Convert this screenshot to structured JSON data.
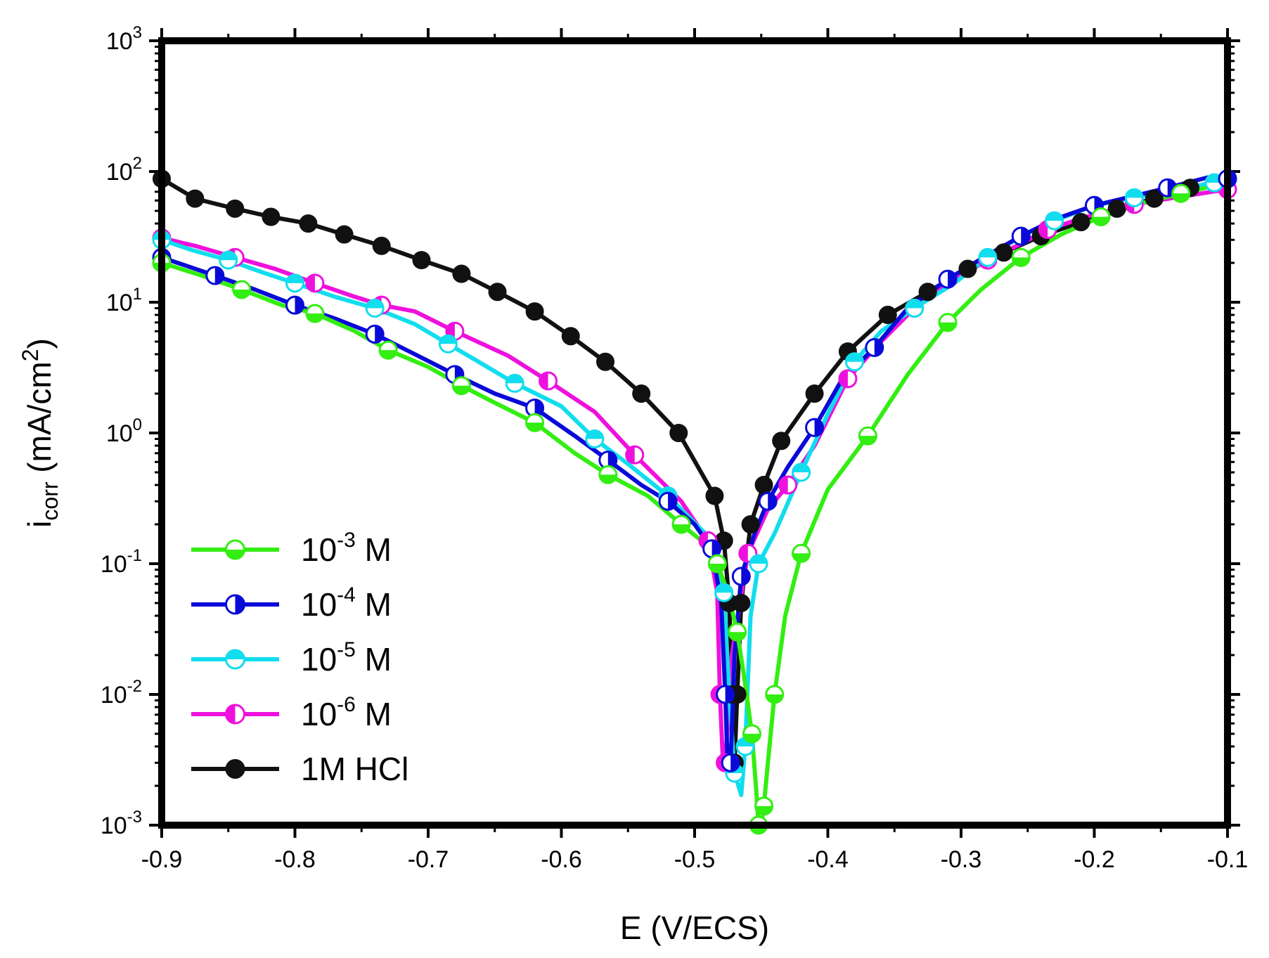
{
  "chart_data": {
    "type": "line",
    "xlabel": "E (V/ECS)",
    "ylabel": {
      "main": "i",
      "sub": "corr",
      "unit": " (mA/cm",
      "sup": "2",
      "close": ")"
    },
    "xlim": [
      -0.9,
      -0.1
    ],
    "ylim": [
      0.001,
      1000
    ],
    "y_scale": "log",
    "grid": false,
    "legend_position": "bottom-left",
    "x_ticks": [
      "-0.9",
      "-0.8",
      "-0.7",
      "-0.6",
      "-0.5",
      "-0.4",
      "-0.3",
      "-0.2",
      "-0.1"
    ],
    "y_ticks": [
      {
        "base": "10",
        "exp": "-3"
      },
      {
        "base": "10",
        "exp": "-2"
      },
      {
        "base": "10",
        "exp": "-1"
      },
      {
        "base": "10",
        "exp": "0"
      },
      {
        "base": "10",
        "exp": "1"
      },
      {
        "base": "10",
        "exp": "2"
      },
      {
        "base": "10",
        "exp": "3"
      }
    ],
    "series": [
      {
        "name": "10-3 M",
        "label": {
          "base": "10",
          "exp": "-3",
          "unit": " M"
        },
        "color": "#33ee11",
        "marker": "half-bottom",
        "x": [
          -0.9,
          -0.87,
          -0.84,
          -0.81,
          -0.785,
          -0.755,
          -0.73,
          -0.7,
          -0.675,
          -0.65,
          -0.62,
          -0.59,
          -0.565,
          -0.535,
          -0.51,
          -0.495,
          -0.483,
          -0.475,
          -0.468,
          -0.462,
          -0.457,
          -0.454,
          -0.452,
          -0.45,
          -0.448,
          -0.445,
          -0.44,
          -0.432,
          -0.42,
          -0.4,
          -0.37,
          -0.34,
          -0.31,
          -0.285,
          -0.255,
          -0.225,
          -0.195,
          -0.165,
          -0.135,
          -0.1
        ],
        "y": [
          20,
          16,
          12.5,
          9.5,
          8.2,
          6,
          4.3,
          3.2,
          2.3,
          1.7,
          1.2,
          0.7,
          0.48,
          0.33,
          0.2,
          0.15,
          0.1,
          0.06,
          0.03,
          0.012,
          0.005,
          0.002,
          0.001,
          0.001,
          0.0014,
          0.003,
          0.01,
          0.04,
          0.12,
          0.37,
          0.95,
          2.8,
          7,
          12.5,
          22,
          33,
          45,
          57,
          68,
          82
        ]
      },
      {
        "name": "10-4 M",
        "label": {
          "base": "10",
          "exp": "-4",
          "unit": " M"
        },
        "color": "#0a0ad8",
        "marker": "half-right",
        "x": [
          -0.9,
          -0.888,
          -0.86,
          -0.83,
          -0.8,
          -0.77,
          -0.74,
          -0.71,
          -0.68,
          -0.65,
          -0.62,
          -0.59,
          -0.565,
          -0.54,
          -0.52,
          -0.5,
          -0.487,
          -0.48,
          -0.477,
          -0.475,
          -0.473,
          -0.47,
          -0.465,
          -0.455,
          -0.445,
          -0.43,
          -0.41,
          -0.39,
          -0.365,
          -0.34,
          -0.31,
          -0.28,
          -0.255,
          -0.23,
          -0.2,
          -0.17,
          -0.145,
          -0.115,
          -0.1
        ],
        "y": [
          22,
          20,
          16,
          12.5,
          9.5,
          7.5,
          5.7,
          4,
          2.8,
          2,
          1.55,
          0.95,
          0.62,
          0.4,
          0.3,
          0.2,
          0.13,
          0.05,
          0.01,
          0.0025,
          0.003,
          0.02,
          0.08,
          0.17,
          0.3,
          0.55,
          1.1,
          2.5,
          4.5,
          9,
          15,
          23,
          32,
          43,
          55,
          65,
          75,
          90,
          88
        ]
      },
      {
        "name": "10-5 M",
        "label": {
          "base": "10",
          "exp": "-5",
          "unit": " M"
        },
        "color": "#11ddee",
        "marker": "half-top",
        "x": [
          -0.9,
          -0.877,
          -0.85,
          -0.825,
          -0.8,
          -0.77,
          -0.74,
          -0.71,
          -0.685,
          -0.66,
          -0.635,
          -0.6,
          -0.575,
          -0.55,
          -0.52,
          -0.492,
          -0.478,
          -0.474,
          -0.47,
          -0.465,
          -0.462,
          -0.458,
          -0.452,
          -0.44,
          -0.42,
          -0.4,
          -0.38,
          -0.36,
          -0.335,
          -0.305,
          -0.28,
          -0.255,
          -0.23,
          -0.2,
          -0.17,
          -0.14,
          -0.11,
          -0.1
        ],
        "y": [
          30,
          25,
          21,
          17,
          14,
          11,
          9,
          6.8,
          4.8,
          3.4,
          2.4,
          1.6,
          0.9,
          0.58,
          0.33,
          0.17,
          0.06,
          0.01,
          0.0025,
          0.0017,
          0.004,
          0.04,
          0.1,
          0.17,
          0.5,
          1.4,
          3.5,
          6,
          9,
          14,
          22,
          32,
          42,
          55,
          63,
          72,
          82,
          85
        ]
      },
      {
        "name": "10-6 M",
        "label": {
          "base": "10",
          "exp": "-6",
          "unit": " M"
        },
        "color": "#ee11dd",
        "marker": "half-left",
        "x": [
          -0.9,
          -0.875,
          -0.845,
          -0.815,
          -0.785,
          -0.755,
          -0.735,
          -0.71,
          -0.68,
          -0.64,
          -0.61,
          -0.575,
          -0.545,
          -0.51,
          -0.49,
          -0.483,
          -0.481,
          -0.479,
          -0.477,
          -0.472,
          -0.46,
          -0.445,
          -0.43,
          -0.41,
          -0.385,
          -0.36,
          -0.335,
          -0.31,
          -0.28,
          -0.255,
          -0.235,
          -0.2,
          -0.17,
          -0.14,
          -0.1
        ],
        "y": [
          31,
          27,
          22,
          18,
          14,
          11,
          9.5,
          8.5,
          6,
          3.9,
          2.5,
          1.45,
          0.68,
          0.3,
          0.15,
          0.06,
          0.01,
          0.0035,
          0.003,
          0.02,
          0.12,
          0.26,
          0.4,
          0.8,
          2.6,
          5,
          9,
          14,
          21,
          28,
          36,
          47,
          56,
          63,
          73
        ]
      },
      {
        "name": "1M HCl",
        "label": {
          "base": "1M HCl",
          "exp": "",
          "unit": ""
        },
        "color": "#111111",
        "marker": "filled",
        "x": [
          -0.9,
          -0.875,
          -0.845,
          -0.818,
          -0.79,
          -0.763,
          -0.735,
          -0.705,
          -0.675,
          -0.648,
          -0.62,
          -0.593,
          -0.567,
          -0.54,
          -0.512,
          -0.485,
          -0.478,
          -0.474,
          -0.472,
          -0.47,
          -0.468,
          -0.465,
          -0.458,
          -0.448,
          -0.435,
          -0.41,
          -0.385,
          -0.355,
          -0.325,
          -0.295,
          -0.268,
          -0.24,
          -0.21,
          -0.183,
          -0.155,
          -0.128,
          -0.1
        ],
        "y": [
          88,
          62,
          52,
          45,
          40,
          33,
          27,
          21,
          16.5,
          12,
          8.5,
          5.5,
          3.5,
          2,
          1,
          0.33,
          0.15,
          0.05,
          0.01,
          0.003,
          0.01,
          0.05,
          0.2,
          0.4,
          0.87,
          2,
          4.2,
          8,
          12,
          18,
          24,
          32,
          41,
          52,
          62,
          75,
          88
        ]
      }
    ]
  }
}
